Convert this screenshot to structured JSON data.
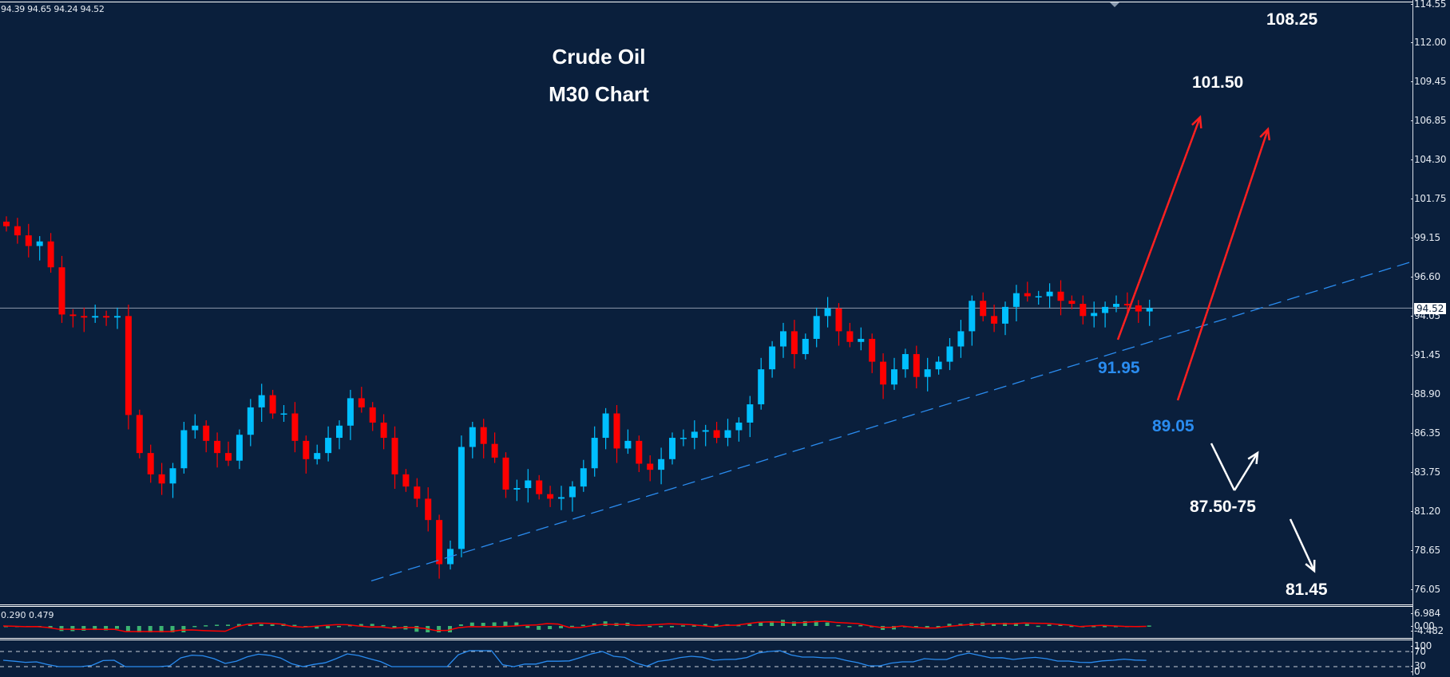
{
  "header": {
    "ohlc_readout": "94.39 94.65 94.24 94.52",
    "title_line1": "Crude Oil",
    "title_line2": "M30 Chart"
  },
  "price_axis": {
    "ticks": [
      "114.55",
      "112.00",
      "109.45",
      "106.85",
      "104.30",
      "101.75",
      "99.15",
      "96.60",
      "94.05",
      "91.45",
      "88.90",
      "86.35",
      "83.75",
      "81.20",
      "78.65",
      "76.05"
    ],
    "current_price": "94.52"
  },
  "annotations": {
    "target_top": "108.25",
    "target_mid": "101.50",
    "support_1": "91.95",
    "support_2": "89.05",
    "pullback_zone": "87.50-75",
    "target_low": "81.45"
  },
  "macd_panel": {
    "readout": "0.290 0.479",
    "ticks": [
      "6.984",
      "0.00",
      "-4.482"
    ]
  },
  "rsi_panel": {
    "ticks": [
      "100",
      "70",
      "30",
      "0"
    ]
  },
  "colors": {
    "background": "#0a1f3c",
    "bull_candle": "#00bfff",
    "bear_candle": "#ff0000",
    "trendline": "#2a8cf0",
    "macd_hist": "#3cb371",
    "macd_signal": "#ff0000",
    "rsi_line": "#2a8cf0",
    "arrow_up": "#ff2020",
    "arrow_white": "#ffffff"
  },
  "chart_data": {
    "type": "candlestick",
    "title": "Crude Oil M30 Chart",
    "timeframe": "M30",
    "ylim": [
      76.05,
      114.55
    ],
    "current_price": 94.52,
    "last_bar": {
      "open": 94.39,
      "high": 94.65,
      "low": 94.24,
      "close": 94.52
    },
    "approx_close_path": [
      99.9,
      99.3,
      98.6,
      98.9,
      97.2,
      94.1,
      94.0,
      93.9,
      94.0,
      93.9,
      94.0,
      87.5,
      85.0,
      83.6,
      83.0,
      84.0,
      86.5,
      86.8,
      85.8,
      85.0,
      84.5,
      86.2,
      88.0,
      88.8,
      87.6,
      87.6,
      85.8,
      84.6,
      85.0,
      86.0,
      86.8,
      88.6,
      88.0,
      87.0,
      86.0,
      83.6,
      82.8,
      82.0,
      80.6,
      77.7,
      78.7,
      85.4,
      86.7,
      85.6,
      84.7,
      82.6,
      82.7,
      83.2,
      82.3,
      82.0,
      82.1,
      82.8,
      84.0,
      86.0,
      87.6,
      85.3,
      85.8,
      84.3,
      83.9,
      84.6,
      86.0,
      86.0,
      86.4,
      86.5,
      86.0,
      86.5,
      87.0,
      88.2,
      90.5,
      92.0,
      93.0,
      91.5,
      92.5,
      94.0,
      94.5,
      93.0,
      92.3,
      92.5,
      91.0,
      89.5,
      90.5,
      91.5,
      90.0,
      90.5,
      91.0,
      92.0,
      93.0,
      95.0,
      94.0,
      93.5,
      94.6,
      95.5,
      95.3,
      95.3,
      95.6,
      95.0,
      94.8,
      94.0,
      94.2,
      94.6,
      94.8,
      94.7,
      94.3,
      94.52
    ],
    "trendline": {
      "from_price": 76.6,
      "to_price": 97.6,
      "style": "dashed"
    },
    "annotations": [
      {
        "text": "108.25",
        "type": "target"
      },
      {
        "text": "101.50",
        "type": "target",
        "arrow": "red-up"
      },
      {
        "text": "91.95",
        "type": "support-trendline"
      },
      {
        "text": "89.05",
        "type": "support",
        "arrow": "red-up"
      },
      {
        "text": "87.50-75",
        "type": "pullback-zone",
        "arrow": "white-v"
      },
      {
        "text": "81.45",
        "type": "target",
        "arrow": "white-down"
      }
    ],
    "indicators": [
      {
        "name": "MACD",
        "readout": [
          0.29,
          0.479
        ],
        "ylim": [
          -4.482,
          6.984
        ]
      },
      {
        "name": "RSI",
        "levels": [
          30,
          70
        ],
        "ylim": [
          0,
          100
        ]
      }
    ],
    "grid": false
  }
}
